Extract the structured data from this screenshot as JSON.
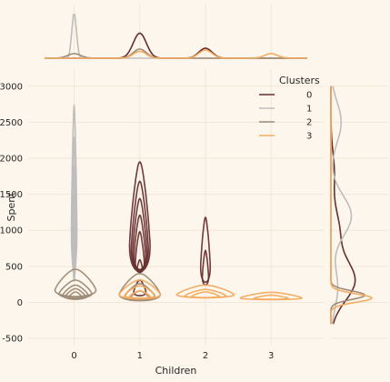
{
  "chart_data": {
    "type": "joint-kde",
    "xlabel": "Children",
    "ylabel": "Spent",
    "xlim": [
      -0.7,
      3.8
    ],
    "ylim": [
      -600,
      3250
    ],
    "x_ticks": [
      0,
      1,
      2,
      3
    ],
    "y_ticks": [
      -500,
      0,
      500,
      1000,
      1500,
      2000,
      2500,
      3000
    ],
    "grid": true,
    "legend": {
      "title": "Clusters",
      "position": "top-right"
    },
    "series": [
      {
        "name": "0",
        "color": "#682f2f",
        "contours": [
          {
            "x": 1,
            "center": 900,
            "half_width": 0.15,
            "half_height": 1050
          },
          {
            "x": 1,
            "center": 830,
            "half_width": 0.125,
            "half_height": 850
          },
          {
            "x": 1,
            "center": 760,
            "half_width": 0.105,
            "half_height": 680
          },
          {
            "x": 1,
            "center": 690,
            "half_width": 0.085,
            "half_height": 520
          },
          {
            "x": 1,
            "center": 600,
            "half_width": 0.065,
            "half_height": 380
          },
          {
            "x": 1,
            "center": 470,
            "half_width": 0.04,
            "half_height": 120
          },
          {
            "x": 1,
            "center": 160,
            "half_width": 0.09,
            "half_height": 150
          },
          {
            "x": 2,
            "center": 560,
            "half_width": 0.07,
            "half_height": 620
          },
          {
            "x": 2,
            "center": 390,
            "half_width": 0.045,
            "half_height": 330
          }
        ],
        "x_marginal_peaks": [
          [
            1,
            0.55
          ],
          [
            2,
            0.22
          ]
        ],
        "y_marginal_peaks": [
          [
            300,
            0.35
          ],
          [
            1000,
            0.12
          ],
          [
            1800,
            0.05
          ]
        ]
      },
      {
        "name": "1",
        "color": "#bdbdbd",
        "contours": [
          {
            "x": 0,
            "center": 1180,
            "half_width": 0.04,
            "half_height": 1550
          },
          {
            "x": 0,
            "center": 1000,
            "half_width": 0.03,
            "half_height": 1300
          },
          {
            "x": 0,
            "center": 850,
            "half_width": 0.022,
            "half_height": 1050
          },
          {
            "x": 0,
            "center": 700,
            "half_width": 0.015,
            "half_height": 800
          },
          {
            "x": 0,
            "center": 550,
            "half_width": 0.008,
            "half_height": 550
          }
        ],
        "x_marginal_peaks": [
          [
            0,
            1.0
          ]
        ],
        "y_marginal_peaks": [
          [
            200,
            0.1
          ],
          [
            1200,
            0.3
          ],
          [
            2500,
            0.15
          ]
        ]
      },
      {
        "name": "2",
        "color": "#9e8b76",
        "contours": [
          {
            "x": 0.02,
            "center": 200,
            "half_width": 0.3,
            "half_height": 260
          },
          {
            "x": 0.02,
            "center": 140,
            "half_width": 0.24,
            "half_height": 170
          },
          {
            "x": 0.02,
            "center": 110,
            "half_width": 0.19,
            "half_height": 130
          },
          {
            "x": 0.02,
            "center": 90,
            "half_width": 0.15,
            "half_height": 100
          },
          {
            "x": 0.02,
            "center": 75,
            "half_width": 0.1,
            "half_height": 70
          },
          {
            "x": 1,
            "center": 140,
            "half_width": 0.3,
            "half_height": 260
          },
          {
            "x": 1,
            "center": 100,
            "half_width": 0.22,
            "half_height": 160
          },
          {
            "x": 1,
            "center": 70,
            "half_width": 0.14,
            "half_height": 90
          }
        ],
        "x_marginal_peaks": [
          [
            0,
            0.1
          ],
          [
            1,
            0.2
          ]
        ],
        "y_marginal_peaks": [
          [
            100,
            0.5
          ]
        ]
      },
      {
        "name": "3",
        "color": "#f3ab60",
        "contours": [
          {
            "x": 1,
            "center": 130,
            "half_width": 0.3,
            "half_height": 180
          },
          {
            "x": 1,
            "center": 110,
            "half_width": 0.22,
            "half_height": 120
          },
          {
            "x": 1,
            "center": 90,
            "half_width": 0.15,
            "half_height": 70
          },
          {
            "x": 2,
            "center": 120,
            "half_width": 0.42,
            "half_height": 120
          },
          {
            "x": 2,
            "center": 100,
            "half_width": 0.3,
            "half_height": 80
          },
          {
            "x": 2,
            "center": 90,
            "half_width": 0.2,
            "half_height": 55
          },
          {
            "x": 3,
            "center": 70,
            "half_width": 0.45,
            "half_height": 70
          },
          {
            "x": 3,
            "center": 60,
            "half_width": 0.25,
            "half_height": 40
          }
        ],
        "x_marginal_peaks": [
          [
            1,
            0.15
          ],
          [
            2,
            0.18
          ],
          [
            3,
            0.1
          ]
        ],
        "y_marginal_peaks": [
          [
            60,
            0.6
          ]
        ]
      }
    ]
  }
}
